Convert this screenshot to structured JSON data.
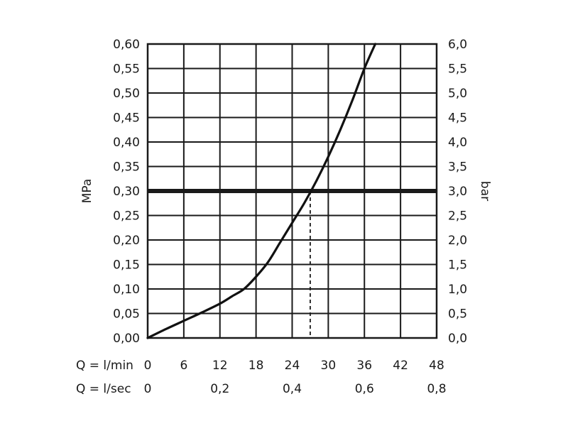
{
  "chart_data": {
    "type": "line",
    "left_axis": {
      "label": "MPa",
      "ticks": [
        "0,00",
        "0,05",
        "0,10",
        "0,15",
        "0,20",
        "0,25",
        "0,30",
        "0,35",
        "0,40",
        "0,45",
        "0,50",
        "0,55",
        "0,60"
      ],
      "range": [
        0,
        0.6
      ]
    },
    "right_axis": {
      "label": "bar",
      "ticks": [
        "0,0",
        "0,5",
        "1,0",
        "1,5",
        "2,0",
        "2,5",
        "3,0",
        "3,5",
        "4,0",
        "4,5",
        "5,0",
        "5,5",
        "6,0"
      ],
      "range": [
        0,
        6
      ]
    },
    "x_axis_lmin": {
      "label": "Q = l/min",
      "ticks": [
        "0",
        "6",
        "12",
        "18",
        "24",
        "30",
        "36",
        "42",
        "48"
      ],
      "range": [
        0,
        48
      ]
    },
    "x_axis_lsec": {
      "label": "Q = l/sec",
      "ticks": [
        {
          "value": 0,
          "text": "0"
        },
        {
          "value": 0.2,
          "text": "0,2"
        },
        {
          "value": 0.4,
          "text": "0,4"
        },
        {
          "value": 0.6,
          "text": "0,6"
        },
        {
          "value": 0.8,
          "text": "0,8"
        }
      ]
    },
    "grid": true,
    "series": [
      {
        "x": [
          0,
          3,
          6,
          9,
          12,
          14,
          16,
          18,
          20,
          22,
          24,
          26,
          28,
          30,
          32,
          34,
          36,
          37.8
        ],
        "y": [
          0,
          0.018,
          0.035,
          0.052,
          0.07,
          0.085,
          0.1,
          0.125,
          0.155,
          0.195,
          0.235,
          0.275,
          0.32,
          0.37,
          0.425,
          0.485,
          0.55,
          0.6
        ]
      }
    ],
    "reference_line": {
      "y": 0.3
    },
    "operating_point": {
      "x": 27,
      "y": 0.3
    },
    "colors": {
      "curve": "#111111",
      "grid": "#1a1a1a",
      "reference": "#1a1a1a"
    }
  }
}
